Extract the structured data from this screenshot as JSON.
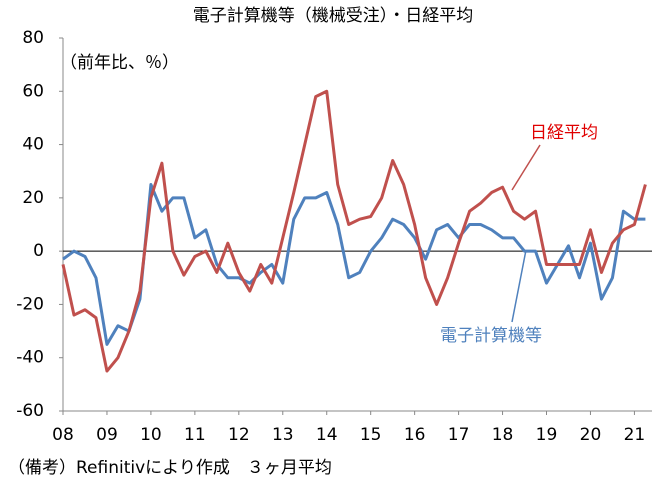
{
  "chart_data": {
    "type": "line",
    "title": "電子計算機等（機械受注）・日経平均",
    "y_label": "（前年比、％）",
    "note": "（備考）Refinitivにより作成　３ヶ月平均",
    "x": [
      2008,
      2008.25,
      2008.5,
      2008.75,
      2009,
      2009.25,
      2009.5,
      2009.75,
      2010,
      2010.25,
      2010.5,
      2010.75,
      2011,
      2011.25,
      2011.5,
      2011.75,
      2012,
      2012.25,
      2012.5,
      2012.75,
      2013,
      2013.25,
      2013.5,
      2013.75,
      2014,
      2014.25,
      2014.5,
      2014.75,
      2015,
      2015.25,
      2015.5,
      2015.75,
      2016,
      2016.25,
      2016.5,
      2016.75,
      2017,
      2017.25,
      2017.5,
      2017.75,
      2018,
      2018.25,
      2018.5,
      2018.75,
      2019,
      2019.25,
      2019.5,
      2019.75,
      2020,
      2020.25,
      2020.5,
      2020.75,
      2021,
      2021.25
    ],
    "series": [
      {
        "name": "日経平均",
        "color": "#c0504d",
        "values": [
          -5,
          -24,
          -22,
          -25,
          -45,
          -40,
          -30,
          -15,
          20,
          33,
          0,
          -9,
          -2,
          0,
          -8,
          3,
          -8,
          -15,
          -5,
          -12,
          5,
          22,
          40,
          58,
          60,
          25,
          10,
          12,
          13,
          20,
          34,
          25,
          10,
          -10,
          -20,
          -10,
          3,
          15,
          18,
          22,
          24,
          15,
          12,
          15,
          -5,
          -5,
          -5,
          -5,
          8,
          -8,
          3,
          8,
          10,
          25
        ]
      },
      {
        "name": "電子計算機等",
        "color": "#4f81bd",
        "values": [
          -3,
          0,
          -2,
          -10,
          -35,
          -28,
          -30,
          -18,
          25,
          15,
          20,
          20,
          5,
          8,
          -5,
          -10,
          -10,
          -12,
          -8,
          -5,
          -12,
          12,
          20,
          20,
          22,
          10,
          -10,
          -8,
          0,
          5,
          12,
          10,
          5,
          -3,
          8,
          10,
          5,
          10,
          10,
          8,
          5,
          5,
          0,
          0,
          -12,
          -5,
          2,
          -10,
          3,
          -18,
          -10,
          15,
          12,
          12
        ]
      }
    ],
    "xlim": [
      2008,
      2021.4
    ],
    "xticks": [
      {
        "value": 2008,
        "label": "08"
      },
      {
        "value": 2009,
        "label": "09"
      },
      {
        "value": 2010,
        "label": "10"
      },
      {
        "value": 2011,
        "label": "11"
      },
      {
        "value": 2012,
        "label": "12"
      },
      {
        "value": 2013,
        "label": "13"
      },
      {
        "value": 2014,
        "label": "14"
      },
      {
        "value": 2015,
        "label": "15"
      },
      {
        "value": 2016,
        "label": "16"
      },
      {
        "value": 2017,
        "label": "17"
      },
      {
        "value": 2018,
        "label": "18"
      },
      {
        "value": 2019,
        "label": "19"
      },
      {
        "value": 2020,
        "label": "20"
      },
      {
        "value": 2021,
        "label": "21"
      }
    ],
    "ylim": [
      -60,
      80
    ],
    "yticks": [
      -60,
      -40,
      -20,
      0,
      20,
      40,
      60,
      80
    ]
  }
}
